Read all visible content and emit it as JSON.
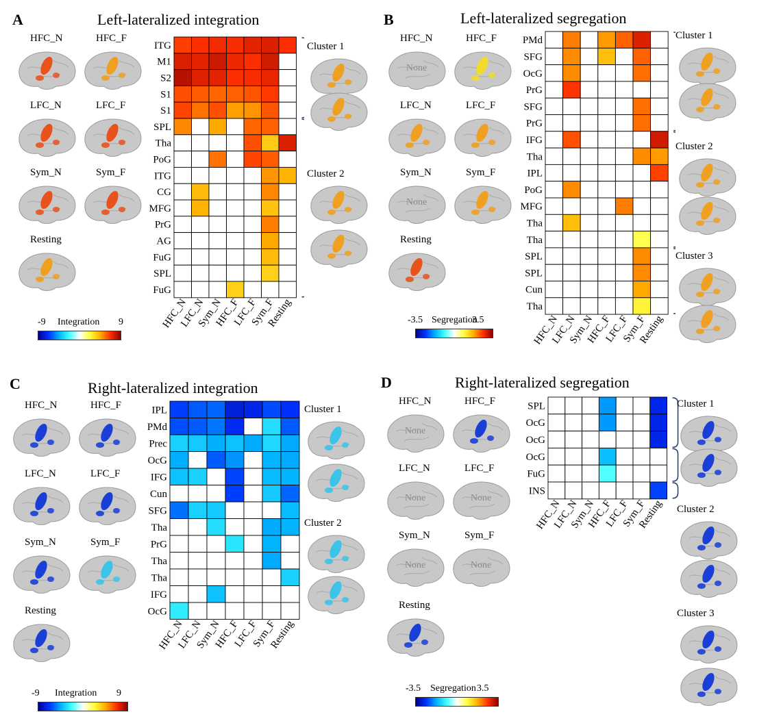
{
  "colormaps": {
    "integration": [
      "#00008f",
      "#0030ff",
      "#00b0ff",
      "#40ffff",
      "#ffffff",
      "#ffff40",
      "#ffb000",
      "#ff3000",
      "#8f0000"
    ],
    "segregation": [
      "#00008f",
      "#0030ff",
      "#00b0ff",
      "#40ffff",
      "#ffffff",
      "#ffff40",
      "#ffb000",
      "#ff3000",
      "#8f0000"
    ]
  },
  "brain_colors": {
    "red": "#e8521d",
    "orange": "#f0a020",
    "yellow": "#f2dc2a",
    "blue": "#1a3fd6",
    "cyan": "#3cc4e8",
    "cortex": "#c8c8c8"
  },
  "chart_data": [
    {
      "type": "heatmap",
      "panel_letter": "A",
      "title": "Left-lateralized integration",
      "x_labels": [
        "HFC_N",
        "LFC_N",
        "Sym_N",
        "HFC_F",
        "LFC_F",
        "Sym_F",
        "Resting"
      ],
      "y_labels": [
        "ITG",
        "M1",
        "S2",
        "S1",
        "S1",
        "SPL",
        "Tha",
        "PoG",
        "ITG",
        "CG",
        "MFG",
        "PrG",
        "AG",
        "FuG",
        "SPL",
        "FuG"
      ],
      "values": [
        [
          6.5,
          6.8,
          7.0,
          6.9,
          7.3,
          7.5,
          6.8
        ],
        [
          7.5,
          7.3,
          7.8,
          7.1,
          6.8,
          7.7,
          null
        ],
        [
          8.2,
          7.4,
          7.3,
          6.8,
          6.9,
          7.2,
          null
        ],
        [
          6.2,
          6.0,
          5.8,
          5.9,
          6.1,
          6.6,
          null
        ],
        [
          6.4,
          5.6,
          6.2,
          4.8,
          5.0,
          6.1,
          null
        ],
        [
          5.2,
          null,
          4.6,
          null,
          5.8,
          5.9,
          null
        ],
        [
          null,
          null,
          null,
          null,
          6.2,
          3.8,
          7.5
        ],
        [
          null,
          null,
          5.6,
          null,
          6.4,
          6.0,
          null
        ],
        [
          null,
          null,
          null,
          null,
          null,
          5.0,
          4.4
        ],
        [
          null,
          4.2,
          null,
          null,
          null,
          5.2,
          null
        ],
        [
          null,
          4.4,
          null,
          null,
          null,
          4.0,
          null
        ],
        [
          null,
          null,
          null,
          null,
          null,
          5.4,
          null
        ],
        [
          null,
          null,
          null,
          null,
          null,
          4.6,
          null
        ],
        [
          null,
          null,
          null,
          null,
          null,
          4.2,
          null
        ],
        [
          null,
          null,
          null,
          null,
          null,
          3.6,
          null
        ],
        [
          null,
          null,
          null,
          3.6,
          null,
          null,
          null
        ]
      ],
      "clusters": [
        {
          "label": "Cluster 1",
          "rows": [
            0,
            4
          ]
        },
        {
          "label": "Cluster 2",
          "rows": [
            5,
            15
          ]
        }
      ],
      "conditions": [
        "HFC_N",
        "HFC_F",
        "LFC_N",
        "LFC_F",
        "Sym_N",
        "Sym_F",
        "Resting"
      ],
      "brain_maps": {
        "HFC_N": "red",
        "HFC_F": "orange",
        "LFC_N": "red",
        "LFC_F": "red",
        "Sym_N": "red",
        "Sym_F": "red",
        "Resting": "orange"
      },
      "none_conditions": [],
      "colorbar": {
        "label": "Integration",
        "min": "-9",
        "max": "9",
        "range": [
          -9,
          9
        ],
        "map": "integration"
      }
    },
    {
      "type": "heatmap",
      "panel_letter": "B",
      "title": "Left-lateralized segregation",
      "x_labels": [
        "HFC_N",
        "LFC_N",
        "Sym_N",
        "HFC_F",
        "LFC_F",
        "Sym_F",
        "Resting"
      ],
      "y_labels": [
        "PMd",
        "SFG",
        "OcG",
        "PrG",
        "SFG",
        "PrG",
        "IFG",
        "Tha",
        "IPL",
        "PoG",
        "MFG",
        "Tha",
        "Tha",
        "SPL",
        "SPL",
        "Cun",
        "Tha"
      ],
      "values": [
        [
          null,
          2.1,
          null,
          1.9,
          2.3,
          2.9,
          null
        ],
        [
          null,
          2.0,
          null,
          1.6,
          null,
          2.3,
          null
        ],
        [
          null,
          2.0,
          null,
          null,
          null,
          2.2,
          null
        ],
        [
          null,
          2.6,
          null,
          null,
          null,
          null,
          null
        ],
        [
          null,
          null,
          null,
          null,
          null,
          2.2,
          null
        ],
        [
          null,
          null,
          null,
          null,
          null,
          2.2,
          null
        ],
        [
          null,
          2.4,
          null,
          null,
          null,
          null,
          3.0
        ],
        [
          null,
          null,
          null,
          null,
          null,
          2.0,
          1.9
        ],
        [
          null,
          null,
          null,
          null,
          null,
          null,
          2.5
        ],
        [
          null,
          2.0,
          null,
          null,
          null,
          null,
          null
        ],
        [
          null,
          null,
          null,
          null,
          2.1,
          null,
          null
        ],
        [
          null,
          1.6,
          null,
          null,
          null,
          null,
          null
        ],
        [
          null,
          null,
          null,
          null,
          null,
          0.8,
          null
        ],
        [
          null,
          null,
          null,
          null,
          null,
          2.0,
          null
        ],
        [
          null,
          null,
          null,
          null,
          null,
          2.0,
          null
        ],
        [
          null,
          null,
          null,
          null,
          null,
          1.8,
          null
        ],
        [
          null,
          null,
          null,
          null,
          null,
          1.0,
          null
        ]
      ],
      "clusters": [
        {
          "label": "Cluster 1",
          "rows": [
            0,
            5
          ]
        },
        {
          "label": "Cluster 2",
          "rows": [
            6,
            12
          ]
        },
        {
          "label": "Cluster 3",
          "rows": [
            13,
            16
          ]
        }
      ],
      "conditions": [
        "HFC_N",
        "HFC_F",
        "LFC_N",
        "LFC_F",
        "Sym_N",
        "Sym_F",
        "Resting"
      ],
      "brain_maps": {
        "HFC_N": null,
        "HFC_F": "yellow",
        "LFC_N": "orange",
        "LFC_F": "orange",
        "Sym_N": null,
        "Sym_F": "orange",
        "Resting": "red"
      },
      "none_conditions": [
        "HFC_N",
        "Sym_N"
      ],
      "colorbar": {
        "label": "Segregation",
        "min": "-3.5",
        "max": "3.5",
        "range": [
          -3.5,
          3.5
        ],
        "map": "segregation"
      }
    },
    {
      "type": "heatmap",
      "panel_letter": "C",
      "title": "Right-lateralized integration",
      "x_labels": [
        "HFC_N",
        "LFC_N",
        "Sym_N",
        "HFC_F",
        "LFC_F",
        "Sym_F",
        "Resting"
      ],
      "y_labels": [
        "IPL",
        "PMd",
        "Prec",
        "OcG",
        "IFG",
        "Cun",
        "SFG",
        "Tha",
        "PrG",
        "Tha",
        "Tha",
        "IFG",
        "OcG"
      ],
      "values": [
        [
          -6.5,
          -6.0,
          -5.8,
          -7.5,
          -7.2,
          -6.3,
          -6.8
        ],
        [
          -6.2,
          -6.0,
          -5.5,
          -7.0,
          null,
          -3.2,
          -6.0
        ],
        [
          -3.6,
          -3.8,
          -4.5,
          -4.0,
          -4.6,
          -3.4,
          -4.6
        ],
        [
          -4.5,
          null,
          -6.0,
          -5.0,
          null,
          -4.4,
          -4.6
        ],
        [
          -4.0,
          -3.6,
          null,
          -6.4,
          null,
          -4.2,
          -4.4
        ],
        [
          null,
          null,
          null,
          -6.5,
          null,
          -3.8,
          -5.8
        ],
        [
          -5.6,
          -3.6,
          -3.8,
          null,
          null,
          null,
          -4.2
        ],
        [
          null,
          null,
          -3.2,
          null,
          null,
          -4.6,
          -4.4
        ],
        [
          null,
          null,
          null,
          -3.0,
          null,
          -4.4,
          null
        ],
        [
          null,
          null,
          null,
          null,
          null,
          -4.6,
          null
        ],
        [
          null,
          null,
          null,
          null,
          null,
          null,
          -3.6
        ],
        [
          null,
          null,
          -4.0,
          null,
          null,
          null,
          null
        ],
        [
          -2.8,
          null,
          null,
          null,
          null,
          null,
          null
        ]
      ],
      "clusters": [
        {
          "label": "Cluster 1",
          "rows": [
            0,
            1
          ]
        },
        {
          "label": "Cluster 2",
          "rows": [
            2,
            12
          ]
        }
      ],
      "conditions": [
        "HFC_N",
        "HFC_F",
        "LFC_N",
        "LFC_F",
        "Sym_N",
        "Sym_F",
        "Resting"
      ],
      "brain_maps": {
        "HFC_N": "blue",
        "HFC_F": "blue",
        "LFC_N": "blue",
        "LFC_F": "blue",
        "Sym_N": "blue",
        "Sym_F": "cyan",
        "Resting": "blue"
      },
      "none_conditions": [],
      "colorbar": {
        "label": "Integration",
        "min": "-9",
        "max": "9",
        "range": [
          -9,
          9
        ],
        "map": "integration"
      }
    },
    {
      "type": "heatmap",
      "panel_letter": "D",
      "title": "Right-lateralized segregation",
      "x_labels": [
        "HFC_N",
        "LFC_N",
        "Sym_N",
        "HFC_F",
        "LFC_F",
        "Sym_F",
        "Resting"
      ],
      "y_labels": [
        "SPL",
        "OcG",
        "OcG",
        "OcG",
        "FuG",
        "INS"
      ],
      "values": [
        [
          null,
          null,
          null,
          -1.9,
          null,
          null,
          -2.8
        ],
        [
          null,
          null,
          null,
          -1.9,
          null,
          null,
          -2.8
        ],
        [
          null,
          null,
          null,
          null,
          null,
          null,
          -2.8
        ],
        [
          null,
          null,
          null,
          -1.6,
          null,
          null,
          null
        ],
        [
          null,
          null,
          null,
          -0.8,
          null,
          null,
          null
        ],
        [
          null,
          null,
          null,
          null,
          null,
          null,
          -2.5
        ]
      ],
      "clusters": [
        {
          "label": "Cluster 1",
          "rows": [
            0,
            2
          ]
        },
        {
          "label": "Cluster 2",
          "rows": [
            3,
            4
          ]
        },
        {
          "label": "Cluster 3",
          "rows": [
            5,
            5
          ]
        }
      ],
      "conditions": [
        "HFC_N",
        "HFC_F",
        "LFC_N",
        "LFC_F",
        "Sym_N",
        "Sym_F",
        "Resting"
      ],
      "brain_maps": {
        "HFC_N": null,
        "HFC_F": "blue",
        "LFC_N": null,
        "LFC_F": null,
        "Sym_N": null,
        "Sym_F": null,
        "Resting": "blue"
      },
      "none_conditions": [
        "HFC_N",
        "LFC_N",
        "LFC_F",
        "Sym_N",
        "Sym_F"
      ],
      "none_text": "None",
      "colorbar": {
        "label": "Segregation",
        "min": "-3.5",
        "max": "3.5",
        "range": [
          -3.5,
          3.5
        ],
        "map": "segregation"
      }
    }
  ]
}
